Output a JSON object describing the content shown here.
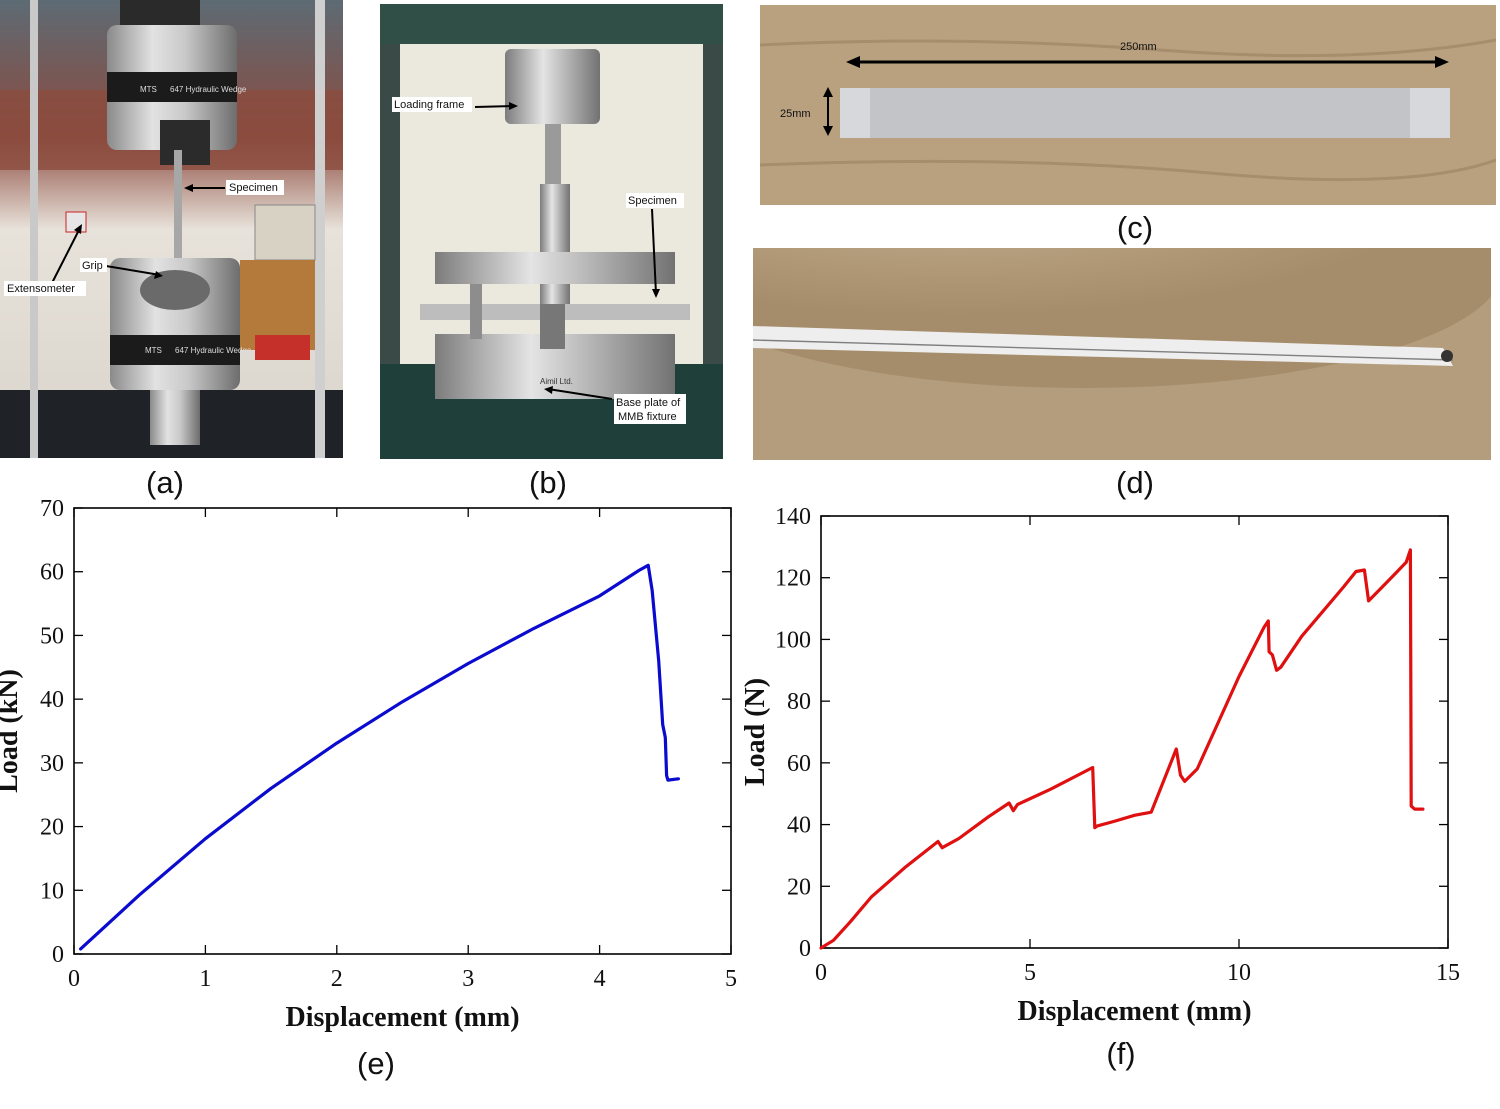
{
  "panels": {
    "a": {
      "label": "(a)",
      "annotations": {
        "specimen": "Specimen",
        "grip": "Grip",
        "extensometer": "Extensometer"
      },
      "machine_text": "647 Hydraulic Wedge",
      "brand": "MTS"
    },
    "b": {
      "label": "(b)",
      "annotations": {
        "loading_frame": "Loading frame",
        "specimen": "Specimen",
        "base_plate_line1": "Base plate of",
        "base_plate_line2": "MMB fixture"
      },
      "fixture_text": "Aimil Ltd."
    },
    "c": {
      "label": "(c)",
      "annotations": {
        "length": "250mm",
        "width": "25mm"
      }
    },
    "d": {
      "label": "(d)"
    },
    "e": {
      "label": "(e)"
    },
    "f": {
      "label": "(f)"
    }
  },
  "colors": {
    "curve_e": "#0b0bd0",
    "curve_f": "#e01010",
    "wood": "#b39a7a",
    "steel": "#b8b8b8"
  },
  "chart_data": [
    {
      "type": "line",
      "panel": "e",
      "xlabel": "Displacement (mm)",
      "ylabel": "Load (kN)",
      "xlim": [
        0,
        5
      ],
      "ylim": [
        0,
        70
      ],
      "xticks": [
        0,
        1,
        2,
        3,
        4,
        5
      ],
      "yticks": [
        0,
        10,
        20,
        30,
        40,
        50,
        60,
        70
      ],
      "series": [
        {
          "color": "#0b0bd0",
          "x": [
            0.05,
            0.5,
            1.0,
            1.5,
            2.0,
            2.5,
            3.0,
            3.5,
            4.0,
            4.3,
            4.37,
            4.4,
            4.45,
            4.48,
            4.5,
            4.51,
            4.52,
            4.6
          ],
          "y": [
            0.8,
            9.3,
            18.1,
            26.0,
            33.1,
            39.6,
            45.6,
            51.1,
            56.2,
            60.2,
            61.0,
            57.0,
            46.0,
            36.0,
            34.0,
            28.0,
            27.3,
            27.5
          ]
        }
      ]
    },
    {
      "type": "line",
      "panel": "f",
      "xlabel": "Displacement (mm)",
      "ylabel": "Load (N)",
      "xlim": [
        0,
        15
      ],
      "ylim": [
        0,
        140
      ],
      "xticks": [
        0,
        5,
        10,
        15
      ],
      "yticks": [
        0,
        20,
        40,
        60,
        80,
        100,
        120,
        140
      ],
      "series": [
        {
          "color": "#e01010",
          "x": [
            0,
            0.3,
            0.7,
            1.2,
            2.0,
            2.8,
            2.9,
            3.3,
            4.0,
            4.5,
            4.6,
            4.7,
            5.5,
            6.5,
            6.55,
            6.6,
            7.0,
            7.5,
            7.9,
            8.5,
            8.6,
            8.7,
            9.0,
            10.0,
            10.6,
            10.7,
            10.72,
            10.8,
            10.9,
            11.0,
            11.5,
            12.0,
            12.5,
            12.8,
            13.0,
            13.1,
            13.5,
            14.0,
            14.1,
            14.12,
            14.2,
            14.4
          ],
          "y": [
            0,
            2.5,
            8.5,
            16.5,
            26.0,
            34.5,
            32.5,
            35.5,
            42.5,
            47.0,
            44.5,
            46.5,
            51.5,
            58.5,
            39.0,
            39.5,
            41.0,
            43.0,
            44.0,
            64.5,
            56.0,
            54.0,
            58.0,
            88.0,
            104.0,
            106.0,
            96.0,
            95.0,
            90.0,
            91.0,
            101.0,
            109.0,
            117.0,
            122.0,
            122.5,
            112.5,
            118.0,
            125.0,
            129.0,
            46.0,
            45.0,
            45.0
          ]
        }
      ]
    }
  ]
}
